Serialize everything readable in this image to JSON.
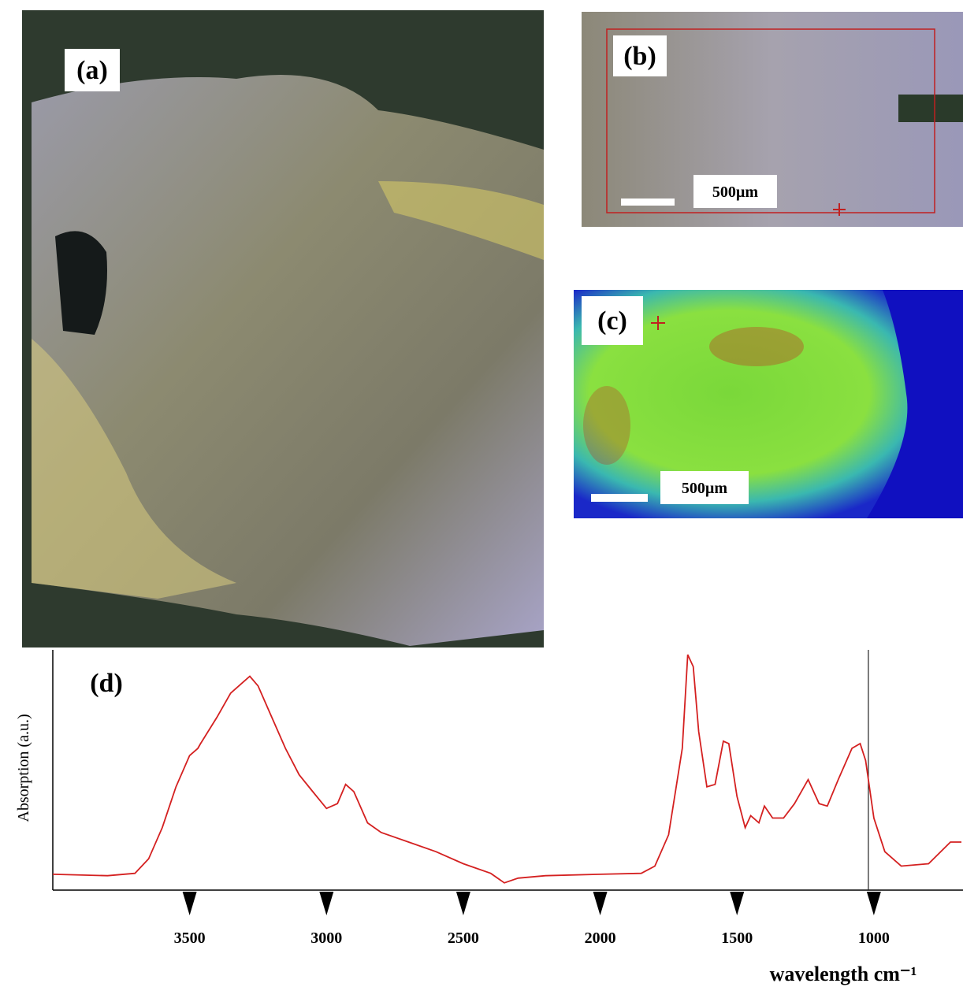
{
  "panels": [
    {
      "label": "(a)"
    },
    {
      "label": "(b)",
      "scale_bar": "500µm"
    },
    {
      "label": "(c)",
      "scale_bar": "500µm"
    }
  ],
  "chart_data": {
    "type": "line",
    "panel_label": "(d)",
    "ylabel": "Absorption (a.u.)",
    "xlabel": "wavelength cm⁻¹",
    "x": [
      4000,
      3800,
      3700,
      3650,
      3600,
      3550,
      3500,
      3470,
      3460,
      3400,
      3350,
      3300,
      3280,
      3250,
      3200,
      3150,
      3100,
      3050,
      3000,
      2960,
      2930,
      2900,
      2850,
      2800,
      2700,
      2600,
      2500,
      2400,
      2350,
      2300,
      2200,
      2000,
      1850,
      1800,
      1750,
      1700,
      1680,
      1660,
      1640,
      1610,
      1580,
      1550,
      1530,
      1500,
      1470,
      1450,
      1420,
      1400,
      1370,
      1330,
      1290,
      1240,
      1200,
      1170,
      1130,
      1080,
      1050,
      1030,
      1000,
      960,
      900,
      800,
      720,
      680
    ],
    "series": [
      {
        "color": "#d42020",
        "values": [
          0.066,
          0.06,
          0.07,
          0.13,
          0.26,
          0.43,
          0.56,
          0.59,
          0.61,
          0.72,
          0.82,
          0.87,
          0.89,
          0.85,
          0.72,
          0.59,
          0.48,
          0.41,
          0.34,
          0.36,
          0.44,
          0.41,
          0.28,
          0.24,
          0.2,
          0.16,
          0.11,
          0.07,
          0.03,
          0.05,
          0.06,
          0.066,
          0.07,
          0.1,
          0.23,
          0.59,
          0.98,
          0.93,
          0.66,
          0.43,
          0.44,
          0.62,
          0.61,
          0.39,
          0.26,
          0.31,
          0.28,
          0.35,
          0.3,
          0.3,
          0.36,
          0.46,
          0.36,
          0.35,
          0.46,
          0.59,
          0.61,
          0.54,
          0.3,
          0.16,
          0.1,
          0.11,
          0.2,
          0.2
        ]
      }
    ],
    "xlim": [
      4000,
      680
    ],
    "ylim": [
      0,
      1
    ],
    "xticks": [
      3500,
      3000,
      2500,
      2000,
      1500,
      1000
    ],
    "marker_x": 1020
  }
}
